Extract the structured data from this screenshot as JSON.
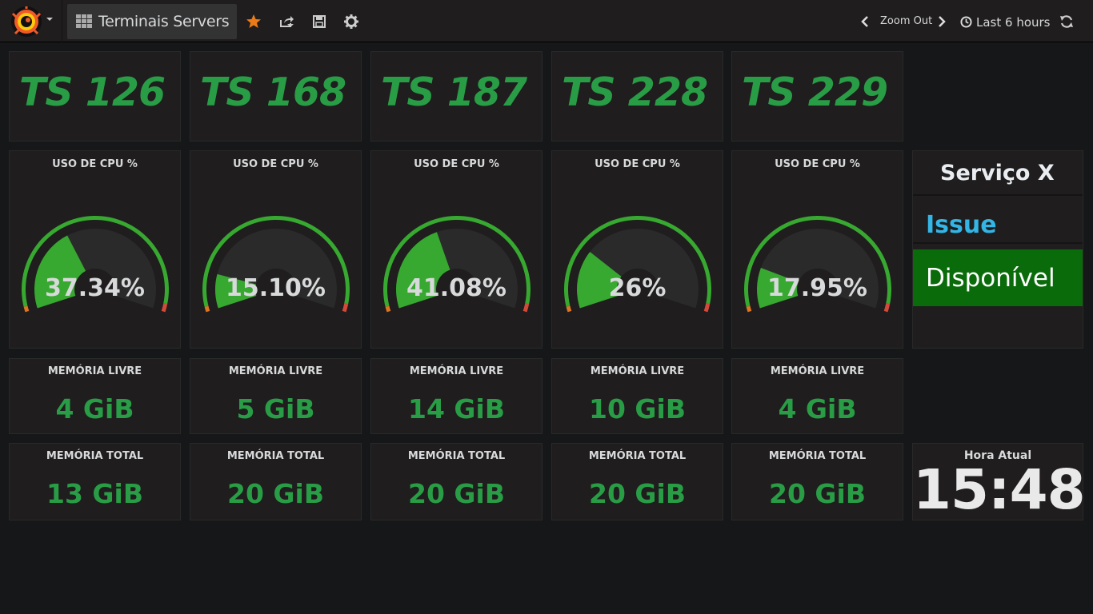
{
  "header": {
    "dashboard_title": "Terminais Servers",
    "zoom_out_label": "Zoom Out",
    "time_range": "Last 6 hours"
  },
  "colors": {
    "ok": "#299c46",
    "gauge_fill": "#37a830",
    "threshold_warn": "#e07421",
    "threshold_crit": "#d44a3a",
    "service_blue": "#33b5e5",
    "service_green": "#0a6b0a"
  },
  "icons": [
    "grafana-logo-icon",
    "dashboard-grid-icon",
    "star-icon",
    "share-icon",
    "save-icon",
    "gear-icon",
    "chevron-left-icon",
    "chevron-right-icon",
    "clock-icon",
    "refresh-icon"
  ],
  "servers": [
    {
      "name": "TS 126",
      "cpu_title": "USO DE CPU %",
      "cpu_value": 37.34,
      "cpu_label": "37.34%",
      "mem_free_title": "MEMÓRIA LIVRE",
      "mem_free": "4 GiB",
      "mem_total_title": "MEMÓRIA TOTAL",
      "mem_total": "13 GiB"
    },
    {
      "name": "TS 168",
      "cpu_title": "USO DE CPU %",
      "cpu_value": 15.1,
      "cpu_label": "15.10%",
      "mem_free_title": "MEMÓRIA LIVRE",
      "mem_free": "5 GiB",
      "mem_total_title": "MEMÓRIA TOTAL",
      "mem_total": "20 GiB"
    },
    {
      "name": "TS 187",
      "cpu_title": "USO DE CPU %",
      "cpu_value": 41.08,
      "cpu_label": "41.08%",
      "mem_free_title": "MEMÓRIA LIVRE",
      "mem_free": "14 GiB",
      "mem_total_title": "MEMÓRIA TOTAL",
      "mem_total": "20 GiB"
    },
    {
      "name": "TS 228",
      "cpu_title": "USO DE CPU %",
      "cpu_value": 26,
      "cpu_label": "26%",
      "mem_free_title": "MEMÓRIA LIVRE",
      "mem_free": "10 GiB",
      "mem_total_title": "MEMÓRIA TOTAL",
      "mem_total": "20 GiB"
    },
    {
      "name": "TS 229",
      "cpu_title": "USO DE CPU %",
      "cpu_value": 17.95,
      "cpu_label": "17.95%",
      "mem_free_title": "MEMÓRIA LIVRE",
      "mem_free": "4 GiB",
      "mem_total_title": "MEMÓRIA TOTAL",
      "mem_total": "20 GiB"
    }
  ],
  "service": {
    "title": "Serviço X",
    "issue": "Issue",
    "status": "Disponível"
  },
  "clock": {
    "title": "Hora Atual",
    "time": "15:48"
  }
}
